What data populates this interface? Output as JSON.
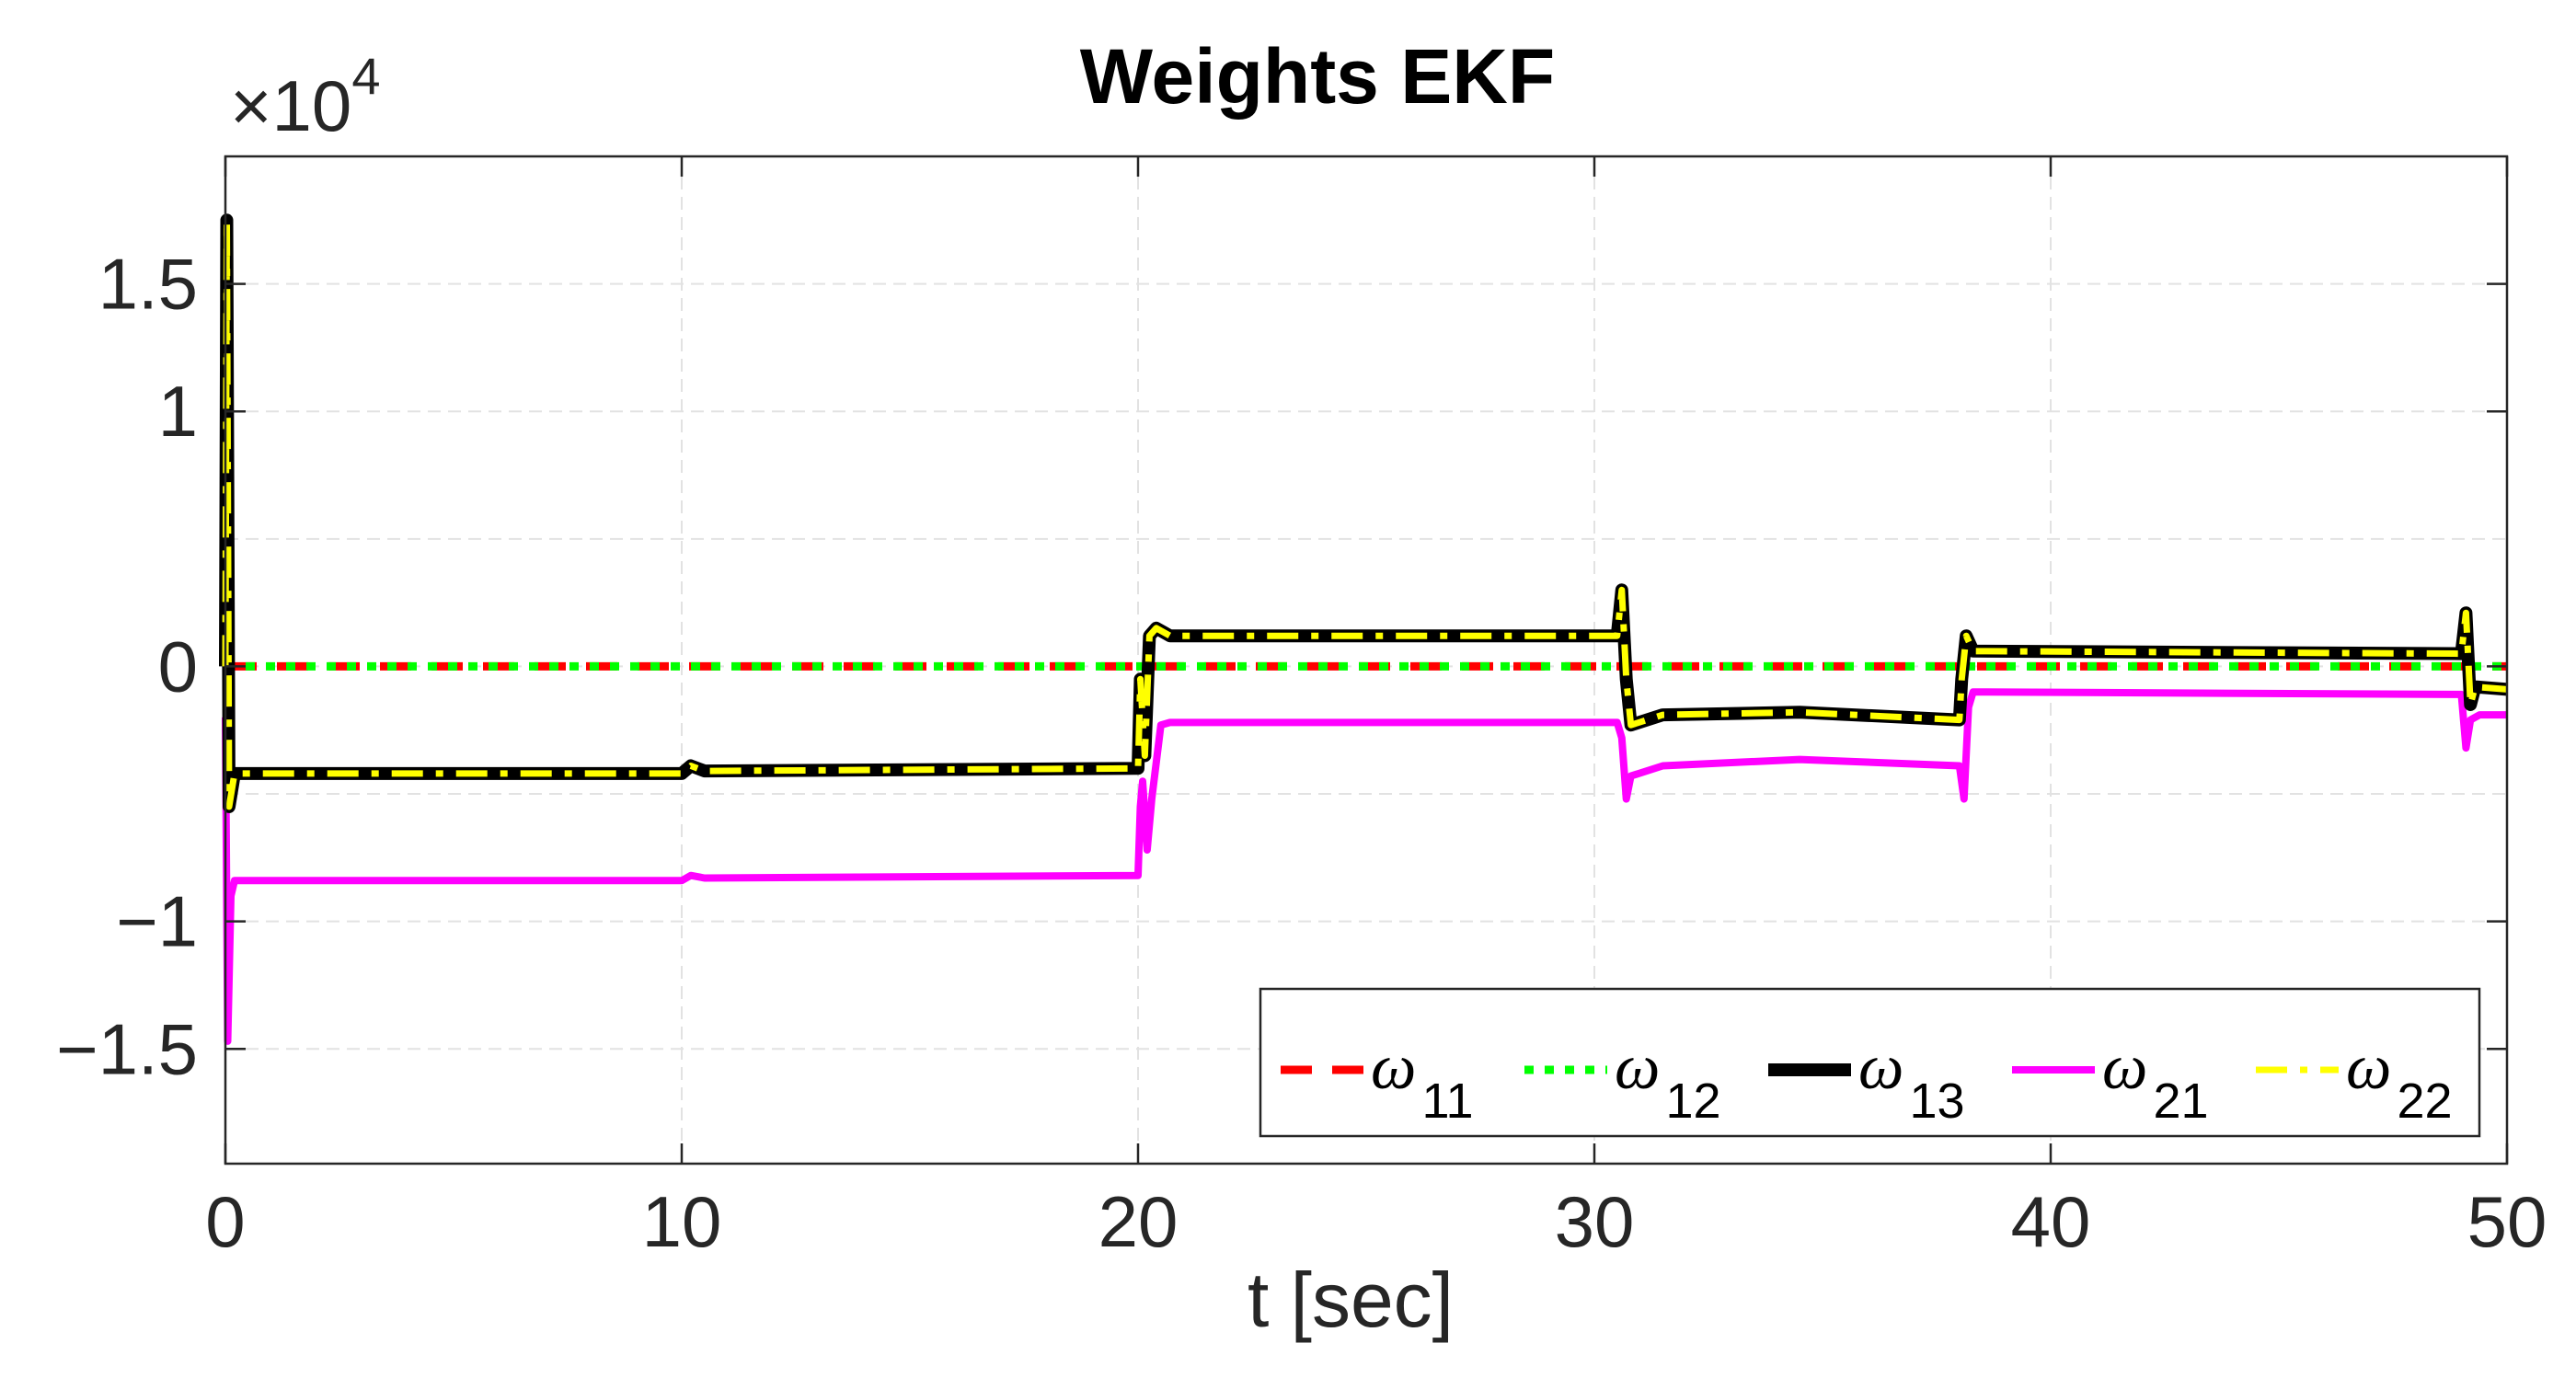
{
  "chart_data": {
    "type": "line",
    "title": "Weights EKF",
    "xlabel": "t [sec]",
    "ylabel": "",
    "exponent_label": {
      "prefix": "×10",
      "power": "4"
    },
    "xlim": [
      0,
      50
    ],
    "ylim": [
      -1.95,
      2.0
    ],
    "xticks": [
      0,
      10,
      20,
      30,
      40,
      50
    ],
    "xtick_labels": [
      "0",
      "10",
      "20",
      "30",
      "40",
      "50"
    ],
    "yticks": [
      -1.5,
      -1,
      0,
      1,
      1.5
    ],
    "ytick_labels": [
      "−1.5",
      "−1",
      "0",
      "1",
      "1.5"
    ],
    "yticks_grid_extra": [
      -0.5,
      0.5
    ],
    "grid": true,
    "legend_position": "bottom-right",
    "series": [
      {
        "key": "w11",
        "name": "ω",
        "subscript": "11",
        "color": "#ff0000",
        "dash": "dashed",
        "points": [
          [
            0,
            0
          ],
          [
            50,
            0
          ]
        ]
      },
      {
        "key": "w12",
        "name": "ω",
        "subscript": "12",
        "color": "#00ff00",
        "dash": "dotted",
        "points": [
          [
            0,
            0
          ],
          [
            50,
            0
          ]
        ]
      },
      {
        "key": "w21",
        "name": "ω",
        "subscript": "21",
        "color": "#ff00ff",
        "dash": "solid",
        "points": [
          [
            0,
            -0.2
          ],
          [
            0.05,
            -1.47
          ],
          [
            0.12,
            -0.9
          ],
          [
            0.2,
            -0.84
          ],
          [
            10,
            -0.84
          ],
          [
            10.2,
            -0.82
          ],
          [
            10.5,
            -0.83
          ],
          [
            20,
            -0.82
          ],
          [
            20.05,
            -0.55
          ],
          [
            20.1,
            -0.45
          ],
          [
            20.2,
            -0.72
          ],
          [
            20.3,
            -0.52
          ],
          [
            20.5,
            -0.23
          ],
          [
            20.7,
            -0.22
          ],
          [
            30.5,
            -0.22
          ],
          [
            30.6,
            -0.28
          ],
          [
            30.7,
            -0.52
          ],
          [
            30.8,
            -0.43
          ],
          [
            31.5,
            -0.39
          ],
          [
            34.5,
            -0.365
          ],
          [
            38,
            -0.39
          ],
          [
            38.1,
            -0.52
          ],
          [
            38.2,
            -0.16
          ],
          [
            38.3,
            -0.1
          ],
          [
            49,
            -0.11
          ],
          [
            49.1,
            -0.32
          ],
          [
            49.2,
            -0.21
          ],
          [
            49.4,
            -0.19
          ],
          [
            50,
            -0.19
          ]
        ]
      },
      {
        "key": "w13",
        "name": "ω",
        "subscript": "13",
        "color": "#000000",
        "dash": "solid",
        "points": [
          [
            0,
            0
          ],
          [
            0.03,
            1.75
          ],
          [
            0.08,
            -0.55
          ],
          [
            0.2,
            -0.42
          ],
          [
            10,
            -0.42
          ],
          [
            10.2,
            -0.39
          ],
          [
            10.5,
            -0.41
          ],
          [
            20,
            -0.4
          ],
          [
            20.05,
            -0.05
          ],
          [
            20.15,
            -0.35
          ],
          [
            20.25,
            0.12
          ],
          [
            20.4,
            0.15
          ],
          [
            20.7,
            0.12
          ],
          [
            30.5,
            0.12
          ],
          [
            30.6,
            0.3
          ],
          [
            30.7,
            -0.05
          ],
          [
            30.8,
            -0.23
          ],
          [
            31.5,
            -0.19
          ],
          [
            34.5,
            -0.18
          ],
          [
            38,
            -0.21
          ],
          [
            38.05,
            -0.05
          ],
          [
            38.15,
            0.12
          ],
          [
            38.3,
            0.06
          ],
          [
            49,
            0.05
          ],
          [
            49.1,
            0.21
          ],
          [
            49.2,
            -0.15
          ],
          [
            49.3,
            -0.08
          ],
          [
            50,
            -0.09
          ]
        ]
      },
      {
        "key": "w22",
        "name": "ω",
        "subscript": "22",
        "color": "#ffff00",
        "dash": "dashdot",
        "points": [
          [
            0,
            0
          ],
          [
            0.03,
            1.75
          ],
          [
            0.08,
            -0.55
          ],
          [
            0.2,
            -0.42
          ],
          [
            10,
            -0.42
          ],
          [
            10.2,
            -0.39
          ],
          [
            10.5,
            -0.41
          ],
          [
            20,
            -0.4
          ],
          [
            20.05,
            -0.05
          ],
          [
            20.15,
            -0.35
          ],
          [
            20.25,
            0.12
          ],
          [
            20.4,
            0.15
          ],
          [
            20.7,
            0.12
          ],
          [
            30.5,
            0.12
          ],
          [
            30.6,
            0.3
          ],
          [
            30.7,
            -0.05
          ],
          [
            30.8,
            -0.23
          ],
          [
            31.5,
            -0.19
          ],
          [
            34.5,
            -0.18
          ],
          [
            38,
            -0.21
          ],
          [
            38.05,
            -0.05
          ],
          [
            38.15,
            0.12
          ],
          [
            38.3,
            0.06
          ],
          [
            49,
            0.05
          ],
          [
            49.1,
            0.21
          ],
          [
            49.2,
            -0.15
          ],
          [
            49.3,
            -0.08
          ],
          [
            50,
            -0.09
          ]
        ]
      }
    ],
    "legend_order": [
      "w11",
      "w12",
      "w13",
      "w21",
      "w22"
    ]
  }
}
